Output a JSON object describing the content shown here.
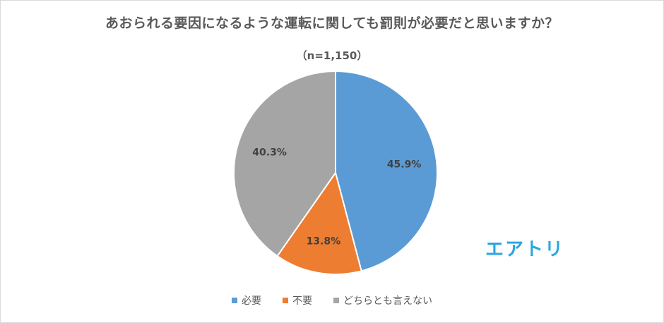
{
  "chart_data": {
    "type": "pie",
    "title": "あおられる要因になるような運転に関しても罰則が必要だと思いますか？",
    "subtitle": "（n=1,150）",
    "series": [
      {
        "name": "必要",
        "value": 45.9,
        "label": "45.9%",
        "color": "#5b9bd5"
      },
      {
        "name": "不要",
        "value": 13.8,
        "label": "13.8%",
        "color": "#ed7d31"
      },
      {
        "name": "どちらとも言えない",
        "value": 40.3,
        "label": "40.3%",
        "color": "#a5a5a5"
      }
    ],
    "legend_position": "bottom"
  },
  "logo": {
    "text": "エアトリ",
    "color": "#29a7e1"
  }
}
